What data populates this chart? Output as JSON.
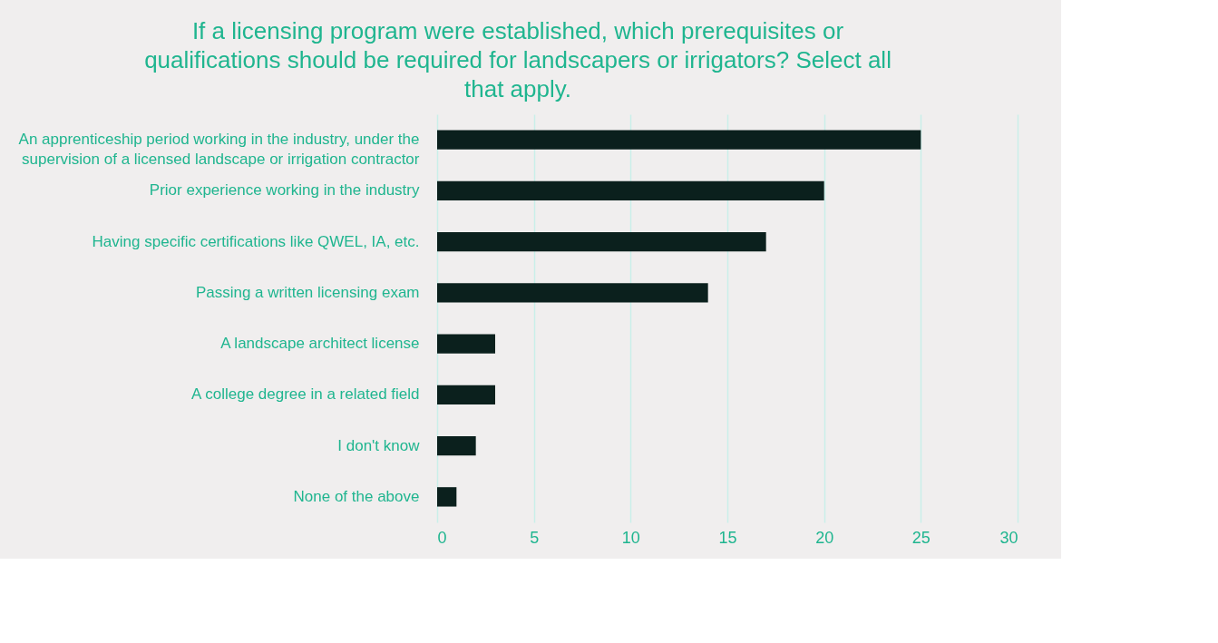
{
  "chart_data": {
    "type": "bar",
    "orientation": "horizontal",
    "title": "If a licensing program were established, which prerequisites or qualifications should be required for landscapers or irrigators? Select all that apply.",
    "categories": [
      "An apprenticeship period working in the industry, under the supervision of a licensed landscape or irrigation contractor",
      "Prior experience working in the industry",
      "Having specific certifications like QWEL, IA, etc.",
      "Passing a written licensing exam",
      "A landscape architect license",
      "A college degree in a related field",
      "I don't know",
      "None of the above"
    ],
    "values": [
      25,
      20,
      17,
      14,
      3,
      3,
      2,
      1
    ],
    "color": "#0b201d",
    "xlim": [
      0,
      30
    ],
    "xticks": [
      0,
      5,
      10,
      15,
      20,
      25,
      30
    ],
    "grid": "x"
  }
}
